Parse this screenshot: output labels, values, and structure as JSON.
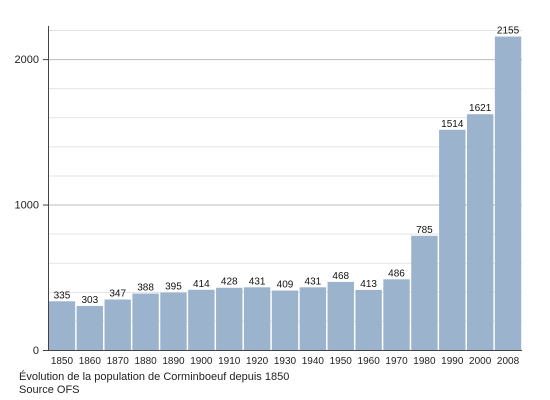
{
  "chart_data": {
    "type": "bar",
    "categories": [
      "1850",
      "1860",
      "1870",
      "1880",
      "1890",
      "1900",
      "1910",
      "1920",
      "1930",
      "1940",
      "1950",
      "1960",
      "1970",
      "1980",
      "1990",
      "2000",
      "2008"
    ],
    "values": [
      335,
      303,
      347,
      388,
      395,
      414,
      428,
      431,
      409,
      431,
      468,
      413,
      486,
      785,
      1514,
      1621,
      2155
    ],
    "title": "",
    "xlabel": "",
    "ylabel": "",
    "ylim": [
      0,
      2200
    ],
    "yticks": [
      0,
      1000,
      2000
    ],
    "minor_gridlines": [
      200,
      400,
      600,
      800,
      1200,
      1400,
      1600,
      1800,
      2200
    ],
    "grid": true,
    "legend": "none",
    "bar_color": "#9bb3cc",
    "data_labels": true
  },
  "caption": {
    "line1": "Évolution de la population de Corminboeuf depuis 1850",
    "line2": "Source OFS"
  }
}
